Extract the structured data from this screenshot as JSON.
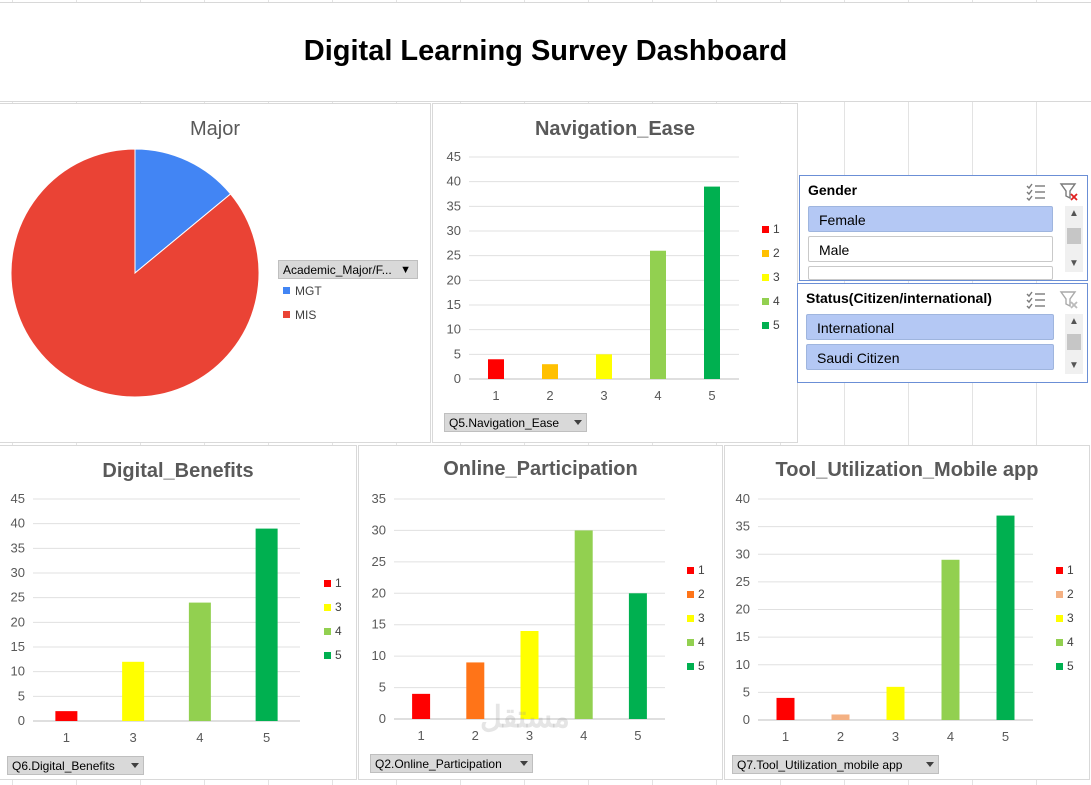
{
  "dashboard": {
    "title": "Digital Learning Survey Dashboard"
  },
  "colors": {
    "c1": "#ff0000",
    "c2_nav": "#ffc000",
    "c2_online": "#ff7418",
    "c2_tool": "#f4b183",
    "c3": "#ffff00",
    "c4": "#92d050",
    "c5": "#00b050",
    "mgt": "#4285f4",
    "mis": "#ea4335"
  },
  "major_chart": {
    "title": "Major",
    "filter_label": "Academic_Major/F...",
    "chart_data": {
      "type": "pie",
      "slices": [
        {
          "label": "MGT",
          "value": 14
        },
        {
          "label": "MIS",
          "value": 86
        }
      ]
    },
    "legend": [
      "MGT",
      "MIS"
    ]
  },
  "navigation_chart": {
    "title": "Navigation_Ease",
    "filter_label": "Q5.Navigation_Ease",
    "legend": [
      "1",
      "2",
      "3",
      "4",
      "5"
    ],
    "chart_data": {
      "type": "bar",
      "categories": [
        "1",
        "2",
        "3",
        "4",
        "5"
      ],
      "values": [
        4,
        3,
        5,
        26,
        39
      ],
      "ylim": [
        0,
        45
      ],
      "yticks": [
        "0",
        "5",
        "10",
        "15",
        "20",
        "25",
        "30",
        "35",
        "40",
        "45"
      ]
    }
  },
  "benefits_chart": {
    "title": "Digital_Benefits",
    "filter_label": "Q6.Digital_Benefits",
    "legend": [
      "1",
      "3",
      "4",
      "5"
    ],
    "chart_data": {
      "type": "bar",
      "categories": [
        "1",
        "3",
        "4",
        "5"
      ],
      "values": [
        2,
        12,
        24,
        39
      ],
      "ylim": [
        0,
        45
      ],
      "yticks": [
        "0",
        "5",
        "10",
        "15",
        "20",
        "25",
        "30",
        "35",
        "40",
        "45"
      ]
    }
  },
  "online_chart": {
    "title": "Online_Participation",
    "filter_label": "Q2.Online_Participation",
    "legend": [
      "1",
      "2",
      "3",
      "4",
      "5"
    ],
    "chart_data": {
      "type": "bar",
      "categories": [
        "1",
        "2",
        "3",
        "4",
        "5"
      ],
      "values": [
        4,
        9,
        14,
        30,
        20
      ],
      "ylim": [
        0,
        35
      ],
      "yticks": [
        "0",
        "5",
        "10",
        "15",
        "20",
        "25",
        "30",
        "35"
      ]
    }
  },
  "tool_chart": {
    "title": "Tool_Utilization_Mobile app",
    "filter_label": "Q7.Tool_Utilization_mobile app",
    "legend": [
      "1",
      "2",
      "3",
      "4",
      "5"
    ],
    "chart_data": {
      "type": "bar",
      "categories": [
        "1",
        "2",
        "3",
        "4",
        "5"
      ],
      "values": [
        4,
        1,
        6,
        29,
        37
      ],
      "ylim": [
        0,
        40
      ],
      "yticks": [
        "0",
        "5",
        "10",
        "15",
        "20",
        "25",
        "30",
        "35",
        "40"
      ]
    }
  },
  "gender_slicer": {
    "title": "Gender",
    "items": [
      "Female",
      "Male"
    ]
  },
  "status_slicer": {
    "title": "Status(Citizen/international)",
    "items": [
      "International",
      "Saudi Citizen"
    ]
  },
  "watermark": "مستقل"
}
